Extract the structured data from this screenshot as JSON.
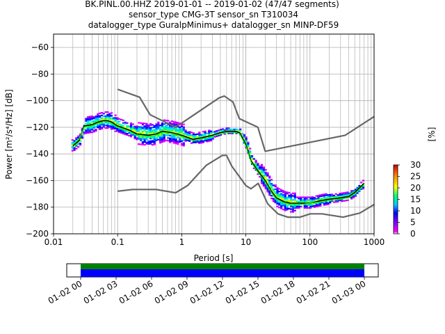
{
  "title": {
    "line1": "BK.PINL.00.HHZ   2019-01-01 -- 2019-01-02  (47/47 segments)",
    "line2": "sensor_type CMG-3T sensor_sn T310034",
    "line3": "datalogger_type GuralpMinimus+ datalogger_sn MINP-DF59"
  },
  "colorbar": {
    "label": "[%]",
    "ticks": [
      "0",
      "5",
      "10",
      "15",
      "20",
      "25",
      "30"
    ],
    "range": [
      0,
      30
    ]
  },
  "timeline": {
    "ticks": [
      "01-02 00",
      "01-02 03",
      "01-02 06",
      "01-02 09",
      "01-02 12",
      "01-02 15",
      "01-02 18",
      "01-02 21",
      "01-03 00"
    ],
    "bar_colors": [
      "#008000",
      "#0000ff"
    ]
  },
  "chart_data": {
    "type": "line",
    "xlabel": "Period [s]",
    "ylabel": "Power [m²/s⁴/Hz] [dB]",
    "x_scale": "log",
    "xlim": [
      0.01,
      1000
    ],
    "ylim": [
      -200,
      -50
    ],
    "xticks": [
      "0.01",
      "0.1",
      "1",
      "10",
      "100",
      "1000"
    ],
    "yticks": [
      "−200",
      "−180",
      "−160",
      "−140",
      "−120",
      "−100",
      "−80",
      "−60"
    ],
    "grid": true,
    "series": [
      {
        "role": "nhnm",
        "color": "#666666",
        "x": [
          0.1,
          0.22,
          0.32,
          0.8,
          3.8,
          4.6,
          6.3,
          7.9,
          15.4,
          20,
          354,
          1000
        ],
        "y": [
          -91.5,
          -97.4,
          -110.5,
          -120,
          -98,
          -96.5,
          -101,
          -113.5,
          -120,
          -138,
          -126,
          -112
        ]
      },
      {
        "role": "nlnm",
        "color": "#666666",
        "x": [
          0.1,
          0.17,
          0.4,
          0.8,
          1.24,
          2.4,
          4.3,
          5,
          6,
          10,
          12,
          15.6,
          21.9,
          31.6,
          45,
          70,
          101,
          154,
          328,
          600,
          1000
        ],
        "y": [
          -168,
          -166.7,
          -166.7,
          -169.2,
          -163.7,
          -148.6,
          -141.1,
          -141.1,
          -149,
          -163.8,
          -166.2,
          -162.1,
          -177.5,
          -185,
          -187.5,
          -187.5,
          -185,
          -185,
          -187.5,
          -184.4,
          -178
        ]
      },
      {
        "role": "mean",
        "color": "#000000",
        "x": [
          0.02,
          0.025,
          0.03,
          0.04,
          0.05,
          0.06,
          0.07,
          0.08,
          0.1,
          0.15,
          0.2,
          0.3,
          0.4,
          0.5,
          0.7,
          1,
          1.5,
          2,
          3,
          4,
          5,
          6,
          7,
          8,
          10,
          12,
          15,
          20,
          25,
          30,
          40,
          50,
          70,
          100,
          150,
          200,
          300,
          400,
          500,
          700
        ],
        "y": [
          -134,
          -130,
          -119,
          -118,
          -116,
          -115,
          -115,
          -116,
          -119,
          -122,
          -125,
          -126,
          -125,
          -123,
          -124,
          -126,
          -129,
          -128,
          -126,
          -124,
          -123,
          -123,
          -123,
          -124,
          -133,
          -145,
          -152,
          -160,
          -168,
          -173,
          -176,
          -177,
          -177,
          -177,
          -175,
          -174,
          -173,
          -172,
          -169,
          -162
        ]
      },
      {
        "role": "mode",
        "color": "#00ff00",
        "x": [
          0.02,
          0.025,
          0.03,
          0.04,
          0.05,
          0.06,
          0.07,
          0.08,
          0.1,
          0.15,
          0.2,
          0.3,
          0.4,
          0.5,
          0.7,
          1,
          1.5,
          2,
          3,
          4,
          5,
          6,
          7,
          8,
          10,
          12,
          15,
          20,
          25,
          30,
          40,
          50,
          70,
          100,
          150,
          200,
          300,
          400,
          500,
          700
        ],
        "y": [
          -133,
          -129,
          -120,
          -119,
          -117,
          -116,
          -116,
          -117,
          -120,
          -123,
          -126,
          -127,
          -126,
          -124,
          -125,
          -127,
          -130,
          -129,
          -127,
          -125,
          -124,
          -124,
          -124,
          -125,
          -134,
          -146,
          -153,
          -161,
          -169,
          -174,
          -177,
          -178,
          -178,
          -177,
          -176,
          -175,
          -174,
          -173,
          -170,
          -163
        ]
      }
    ]
  }
}
